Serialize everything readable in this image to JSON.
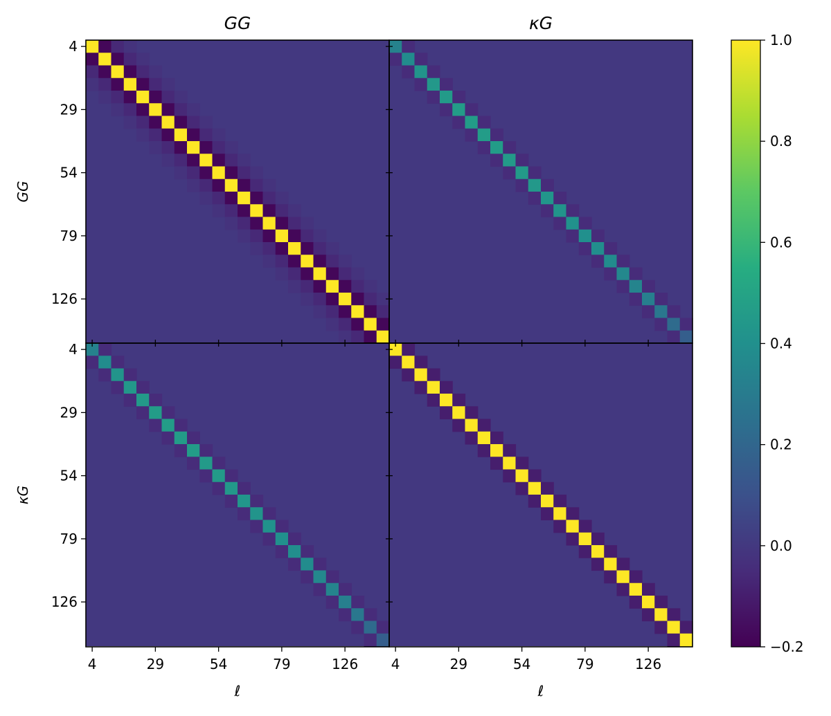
{
  "chart_data": {
    "type": "heatmap",
    "title_cols": [
      "GG",
      "κG"
    ],
    "row_labels": [
      "GG",
      "κG"
    ],
    "xlabel": "ℓ",
    "bins_per_block": 24,
    "tick_labels": [
      "4",
      "29",
      "54",
      "79",
      "126"
    ],
    "tick_bins": [
      0,
      5,
      10,
      15,
      20
    ],
    "colormap": "viridis",
    "colorbar": {
      "min": -0.2,
      "max": 1.0,
      "ticks": [
        "1.0",
        "0.8",
        "0.6",
        "0.4",
        "0.2",
        "0.0",
        "−0.2"
      ],
      "tick_values": [
        1.0,
        0.8,
        0.6,
        0.4,
        0.2,
        0.0,
        -0.2
      ]
    },
    "blocks": {
      "GG-GG": {
        "diagonal": 1.0,
        "offdiag_1": -0.18,
        "offdiag_2": -0.06,
        "offdiag_3": -0.02,
        "background": 0.0
      },
      "GG-kG": {
        "diagonal": [
          0.33,
          0.38,
          0.42,
          0.44,
          0.45,
          0.46,
          0.46,
          0.46,
          0.46,
          0.45,
          0.45,
          0.44,
          0.43,
          0.42,
          0.41,
          0.4,
          0.39,
          0.38,
          0.36,
          0.34,
          0.32,
          0.28,
          0.22,
          0.16
        ],
        "offdiag_1": -0.05,
        "background": 0.0
      },
      "kG-GG": {
        "diagonal": [
          0.33,
          0.38,
          0.42,
          0.44,
          0.45,
          0.46,
          0.46,
          0.46,
          0.46,
          0.45,
          0.45,
          0.44,
          0.43,
          0.42,
          0.41,
          0.4,
          0.39,
          0.38,
          0.36,
          0.34,
          0.32,
          0.28,
          0.22,
          0.16
        ],
        "offdiag_1": -0.05,
        "background": 0.0
      },
      "kG-kG": {
        "diagonal": 1.0,
        "offdiag_1": -0.1,
        "background": 0.0
      }
    }
  }
}
